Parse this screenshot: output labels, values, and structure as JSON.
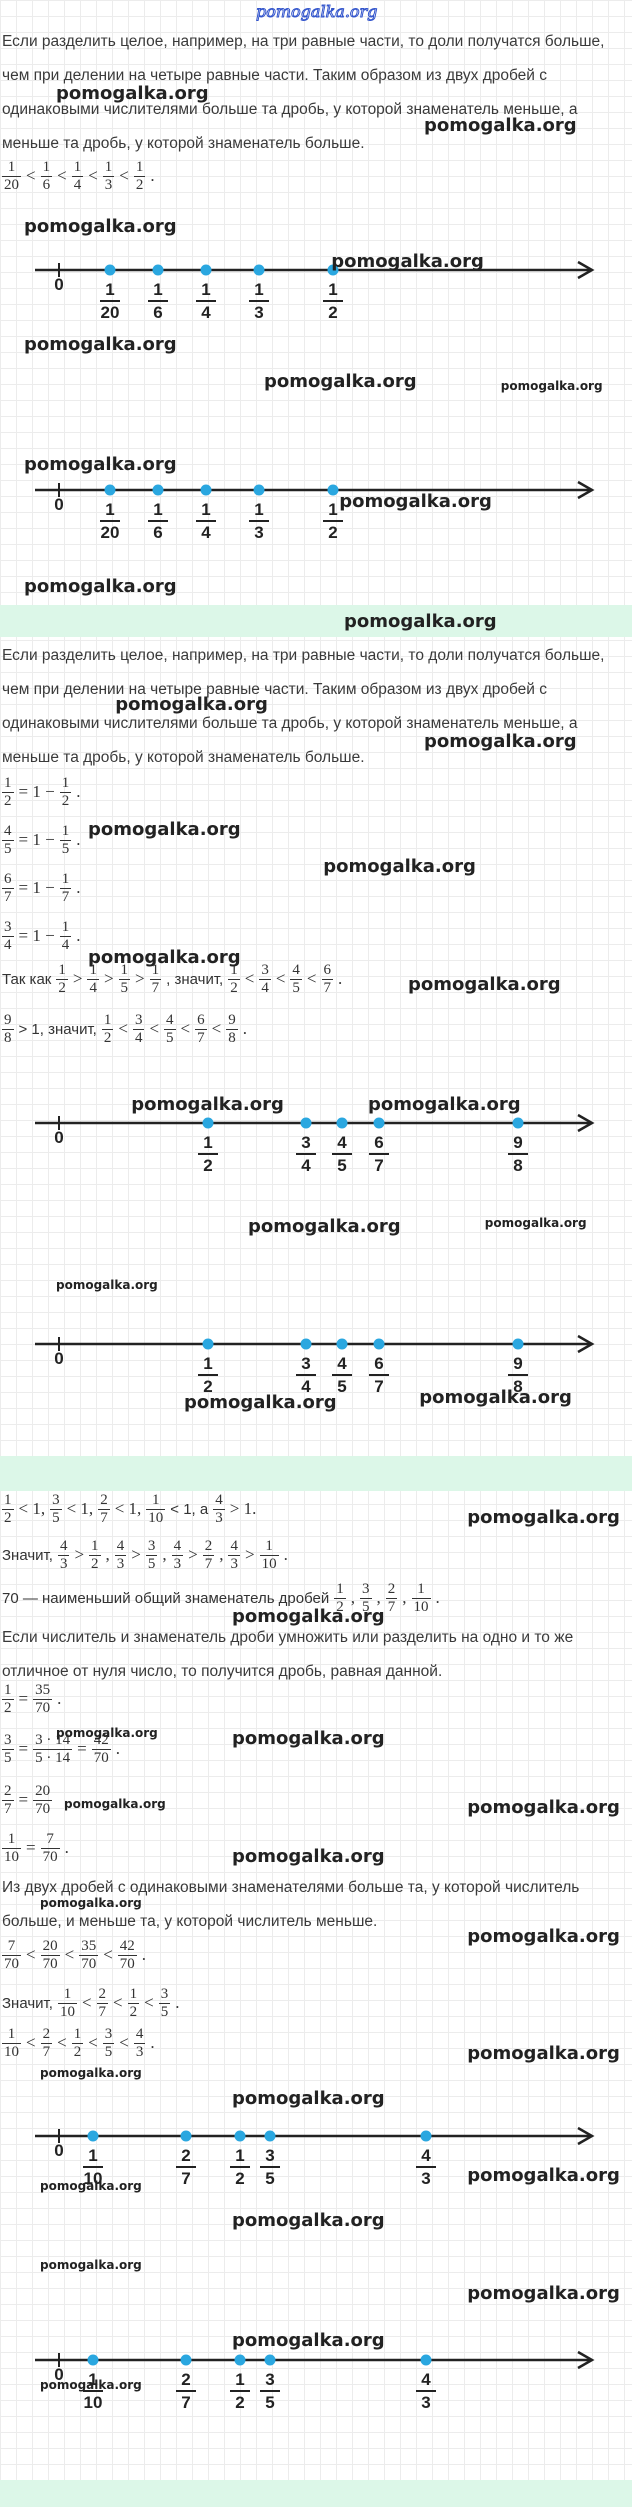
{
  "logo": "pomogalka.org",
  "watermark": "pomogalka.org",
  "blocks": [
    {
      "text": "Если разделить целое, например, на три равные части, то доли получатся больше, чем при делении на четыре равные части. Таким образом из двух дробей с одинаковыми числителями больше та дробь, у которой знаменатель меньше, а меньше та дробь, у которой знаменатель больше."
    },
    {
      "math": [
        {
          "n": "1",
          "d": "20"
        },
        "<",
        {
          "n": "1",
          "d": "6"
        },
        "<",
        {
          "n": "1",
          "d": "4"
        },
        "<",
        {
          "n": "1",
          "d": "3"
        },
        "<",
        {
          "n": "1",
          "d": "2"
        },
        "."
      ]
    },
    {
      "number_line": {
        "zero": "0",
        "points": [
          {
            "n": "1",
            "d": "20"
          },
          {
            "n": "1",
            "d": "6"
          },
          {
            "n": "1",
            "d": "4"
          },
          {
            "n": "1",
            "d": "3"
          },
          {
            "n": "1",
            "d": "2"
          }
        ]
      }
    },
    {
      "number_line": {
        "zero": "0",
        "points": [
          {
            "n": "1",
            "d": "20"
          },
          {
            "n": "1",
            "d": "6"
          },
          {
            "n": "1",
            "d": "4"
          },
          {
            "n": "1",
            "d": "3"
          },
          {
            "n": "1",
            "d": "2"
          }
        ]
      }
    },
    {
      "text": "Если разделить целое, например, на три равные части, то доли получатся больше, чем при делении на четыре равные части. Таким образом из двух дробей с одинаковыми числителями больше та дробь, у которой знаменатель меньше, а меньше та дробь, у которой знаменатель больше."
    },
    {
      "math": [
        {
          "n": "1",
          "d": "2"
        },
        "= 1 −",
        {
          "n": "1",
          "d": "2"
        },
        "."
      ]
    },
    {
      "math": [
        {
          "n": "4",
          "d": "5"
        },
        "= 1 −",
        {
          "n": "1",
          "d": "5"
        },
        "."
      ]
    },
    {
      "math": [
        {
          "n": "6",
          "d": "7"
        },
        "= 1 −",
        {
          "n": "1",
          "d": "7"
        },
        "."
      ]
    },
    {
      "math": [
        {
          "n": "3",
          "d": "4"
        },
        "= 1 −",
        {
          "n": "1",
          "d": "4"
        },
        "."
      ]
    },
    {
      "math": [
        "Так как",
        {
          "n": "1",
          "d": "2"
        },
        ">",
        {
          "n": "1",
          "d": "4"
        },
        ">",
        {
          "n": "1",
          "d": "5"
        },
        ">",
        {
          "n": "1",
          "d": "7"
        },
        ", значит,",
        {
          "n": "1",
          "d": "2"
        },
        "<",
        {
          "n": "3",
          "d": "4"
        },
        "<",
        {
          "n": "4",
          "d": "5"
        },
        "<",
        {
          "n": "6",
          "d": "7"
        },
        "."
      ]
    },
    {
      "math": [
        {
          "n": "9",
          "d": "8"
        },
        "> 1, значит,",
        {
          "n": "1",
          "d": "2"
        },
        "<",
        {
          "n": "3",
          "d": "4"
        },
        "<",
        {
          "n": "4",
          "d": "5"
        },
        "<",
        {
          "n": "6",
          "d": "7"
        },
        "<",
        {
          "n": "9",
          "d": "8"
        },
        "."
      ]
    },
    {
      "number_line": {
        "zero": "0",
        "points": [
          {
            "n": "1",
            "d": "2"
          },
          {
            "n": "3",
            "d": "4"
          },
          {
            "n": "4",
            "d": "5"
          },
          {
            "n": "6",
            "d": "7"
          },
          {
            "n": "9",
            "d": "8"
          }
        ]
      }
    },
    {
      "number_line": {
        "zero": "0",
        "points": [
          {
            "n": "1",
            "d": "2"
          },
          {
            "n": "3",
            "d": "4"
          },
          {
            "n": "4",
            "d": "5"
          },
          {
            "n": "6",
            "d": "7"
          },
          {
            "n": "9",
            "d": "8"
          }
        ]
      }
    },
    {
      "math": [
        {
          "n": "1",
          "d": "2"
        },
        "< 1,",
        {
          "n": "3",
          "d": "5"
        },
        "< 1,",
        {
          "n": "2",
          "d": "7"
        },
        "< 1,",
        {
          "n": "1",
          "d": "10"
        },
        "< 1, а",
        {
          "n": "4",
          "d": "3"
        },
        "> 1."
      ]
    },
    {
      "math": [
        "Значит,",
        {
          "n": "4",
          "d": "3"
        },
        ">",
        {
          "n": "1",
          "d": "2"
        },
        ",",
        {
          "n": "4",
          "d": "3"
        },
        ">",
        {
          "n": "3",
          "d": "5"
        },
        ",",
        {
          "n": "4",
          "d": "3"
        },
        ">",
        {
          "n": "2",
          "d": "7"
        },
        ",",
        {
          "n": "4",
          "d": "3"
        },
        ">",
        {
          "n": "1",
          "d": "10"
        },
        "."
      ]
    },
    {
      "math": [
        "70 — наименьший общий знаменатель дробей",
        {
          "n": "1",
          "d": "2"
        },
        ",",
        {
          "n": "3",
          "d": "5"
        },
        ",",
        {
          "n": "2",
          "d": "7"
        },
        ",",
        {
          "n": "1",
          "d": "10"
        },
        "."
      ]
    },
    {
      "text": "Если числитель и знаменатель дроби умножить или разделить на одно и то же отличное от нуля число, то получится дробь, равная данной."
    },
    {
      "math": [
        {
          "n": "1",
          "d": "2"
        },
        "=",
        {
          "n": "35",
          "d": "70"
        },
        "."
      ]
    },
    {
      "math": [
        {
          "n": "3",
          "d": "5"
        },
        "=",
        {
          "n": "3 · 14",
          "d": "5 · 14"
        },
        "=",
        {
          "n": "42",
          "d": "70"
        },
        "."
      ]
    },
    {
      "math": [
        {
          "n": "2",
          "d": "7"
        },
        "=",
        {
          "n": "20",
          "d": "70"
        }
      ]
    },
    {
      "math": [
        {
          "n": "1",
          "d": "10"
        },
        "=",
        {
          "n": "7",
          "d": "70"
        },
        "."
      ]
    },
    {
      "text": "Из двух дробей с одинаковыми знаменателями больше та, у которой числитель больше, и меньше та, у которой числитель меньше."
    },
    {
      "math": [
        {
          "n": "7",
          "d": "70"
        },
        "<",
        {
          "n": "20",
          "d": "70"
        },
        "<",
        {
          "n": "35",
          "d": "70"
        },
        "<",
        {
          "n": "42",
          "d": "70"
        },
        "."
      ]
    },
    {
      "math": [
        "Значит,",
        {
          "n": "1",
          "d": "10"
        },
        "<",
        {
          "n": "2",
          "d": "7"
        },
        "<",
        {
          "n": "1",
          "d": "2"
        },
        "<",
        {
          "n": "3",
          "d": "5"
        },
        "."
      ]
    },
    {
      "math": [
        {
          "n": "1",
          "d": "10"
        },
        "<",
        {
          "n": "2",
          "d": "7"
        },
        "<",
        {
          "n": "1",
          "d": "2"
        },
        "<",
        {
          "n": "3",
          "d": "5"
        },
        "<",
        {
          "n": "4",
          "d": "3"
        },
        "."
      ]
    },
    {
      "number_line": {
        "zero": "0",
        "points": [
          {
            "n": "1",
            "d": "10"
          },
          {
            "n": "2",
            "d": "7"
          },
          {
            "n": "1",
            "d": "2"
          },
          {
            "n": "3",
            "d": "5"
          },
          {
            "n": "4",
            "d": "3"
          }
        ]
      }
    },
    {
      "number_line": {
        "zero": "0",
        "points": [
          {
            "n": "1",
            "d": "10"
          },
          {
            "n": "2",
            "d": "7"
          },
          {
            "n": "1",
            "d": "2"
          },
          {
            "n": "3",
            "d": "5"
          },
          {
            "n": "4",
            "d": "3"
          }
        ]
      }
    }
  ]
}
